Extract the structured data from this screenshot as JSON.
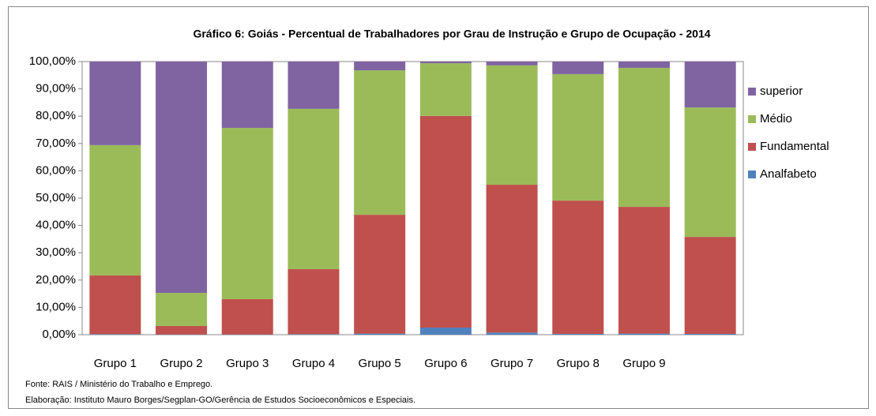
{
  "chart_data": {
    "type": "stacked_bar",
    "title": "Gráfico 6: Goiás - Percentual de Trabalhadores por Grau de Instrução e Grupo de Ocupação - 2014",
    "categories": [
      "Grupo 1",
      "Grupo 2",
      "Grupo 3",
      "Grupo 4",
      "Grupo 5",
      "Grupo 6",
      "Grupo 7",
      "Grupo 8",
      "Grupo 9",
      null
    ],
    "series": [
      {
        "name": "Analfabeto",
        "color": "#4f81bd",
        "values": [
          0.2,
          0.1,
          0.1,
          0.2,
          0.4,
          2.6,
          0.8,
          0.3,
          0.4,
          0.3
        ]
      },
      {
        "name": "Fundamental",
        "color": "#c0504d",
        "values": [
          21.5,
          3.1,
          12.9,
          23.8,
          43.5,
          77.5,
          54.1,
          48.8,
          46.4,
          35.5
        ]
      },
      {
        "name": "Médio",
        "color": "#9bbb59",
        "values": [
          47.7,
          12.1,
          62.7,
          58.7,
          52.9,
          19.3,
          43.7,
          46.3,
          50.9,
          47.4
        ]
      },
      {
        "name": "superior",
        "color": "#8064a2",
        "values": [
          30.6,
          84.7,
          24.3,
          17.3,
          3.2,
          0.6,
          1.4,
          4.6,
          2.3,
          16.8
        ]
      }
    ],
    "ylim": [
      0,
      100
    ],
    "yticks": [
      {
        "value": 0,
        "label": "0,00%"
      },
      {
        "value": 10,
        "label": "10,00%"
      },
      {
        "value": 20,
        "label": "20,00%"
      },
      {
        "value": 30,
        "label": "30,00%"
      },
      {
        "value": 40,
        "label": "40,00%"
      },
      {
        "value": 50,
        "label": "50,00%"
      },
      {
        "value": 60,
        "label": "60,00%"
      },
      {
        "value": 70,
        "label": "70,00%"
      },
      {
        "value": 80,
        "label": "80,00%"
      },
      {
        "value": 90,
        "label": "90,00%"
      },
      {
        "value": 100,
        "label": "100,00%"
      }
    ],
    "legend": "right",
    "notes": [
      "Fonte: RAIS / Ministério do Trabalho e Emprego.",
      "Elaboração: Instituto Mauro Borges/Segplan-GO/Gerência de Estudos Socioeconômicos e Especiais."
    ]
  }
}
